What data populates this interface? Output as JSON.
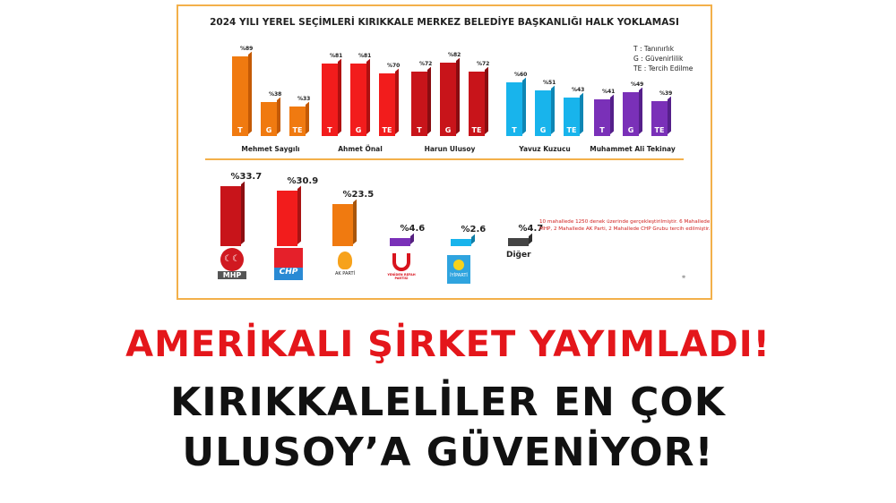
{
  "chart_data": [
    {
      "type": "bar",
      "title": "2024 YILI YEREL SEÇİMLERİ KIRIKKALE MERKEZ BELEDİYE BAŞKANLIĞI HALK YOKLAMASI",
      "legend": [
        "T : Tanınırlık",
        "G : Güvenirlilik",
        "TE : Tercih Edilme"
      ],
      "legend_placement": "top-right",
      "candidates": [
        {
          "name": "Mehmet Saygılı",
          "color": "#f07a10",
          "side": "#c45a05",
          "values": [
            89,
            38,
            33
          ],
          "labels": [
            "%89",
            "%38",
            "%33"
          ]
        },
        {
          "name": "Ahmet Önal",
          "color": "#f21c1c",
          "side": "#b01010",
          "values": [
            81,
            81,
            70
          ],
          "labels": [
            "%81",
            "%81",
            "%70"
          ]
        },
        {
          "name": "Harun Ulusoy",
          "color": "#c8141a",
          "side": "#8a0c10",
          "values": [
            72,
            82,
            72
          ],
          "labels": [
            "%72",
            "%82",
            "%72"
          ]
        },
        {
          "name": "Yavuz Kuzucu",
          "color": "#18b4ec",
          "side": "#0e86b4",
          "values": [
            60,
            51,
            43
          ],
          "labels": [
            "%60",
            "%51",
            "%43"
          ]
        },
        {
          "name": "Muhammet Ali Tekinay",
          "color": "#7a30b8",
          "side": "#55208a",
          "values": [
            41,
            49,
            39
          ],
          "labels": [
            "%41",
            "%49",
            "%39"
          ]
        }
      ],
      "series_labels": [
        "T",
        "G",
        "TE"
      ]
    },
    {
      "type": "bar",
      "categories": [
        "MHP",
        "CHP",
        "AK PARTİ",
        "YENİDEN REFAH PARTİSİ",
        "İYİ PARTİ",
        "Diğer"
      ],
      "values": [
        33.7,
        30.9,
        23.5,
        4.6,
        2.6,
        4.7
      ],
      "labels": [
        "%33.7",
        "%30.9",
        "%23.5",
        "%4.6",
        "%2.6",
        "%4.7"
      ],
      "colors": [
        "#c8141a",
        "#f21c1c",
        "#f07a10",
        "#7a30b8",
        "#18b4ec",
        "#444444"
      ],
      "note": "10 mahallede 1250 denek üzerinde gerçekleştirilmiştir. 6 Mahallede MHP, 2 Mahallede AK Parti, 2 Mahallede CHP Grubu tercih edilmiştir.",
      "other_label": "Diğer"
    }
  ],
  "headline": {
    "line1": "AMERİKALI ŞİRKET YAYIMLADI!",
    "line2": "KIRIKKALELİLER EN ÇOK",
    "line3": "ULUSOY’A GÜVENİYOR!"
  },
  "logos": {
    "mhp": "MHP",
    "chp": "CHP",
    "akp": "AK PARTİ",
    "yrp": "YENİDEN REFAH PARTİSİ",
    "iyi": "İYİPARTİ"
  }
}
